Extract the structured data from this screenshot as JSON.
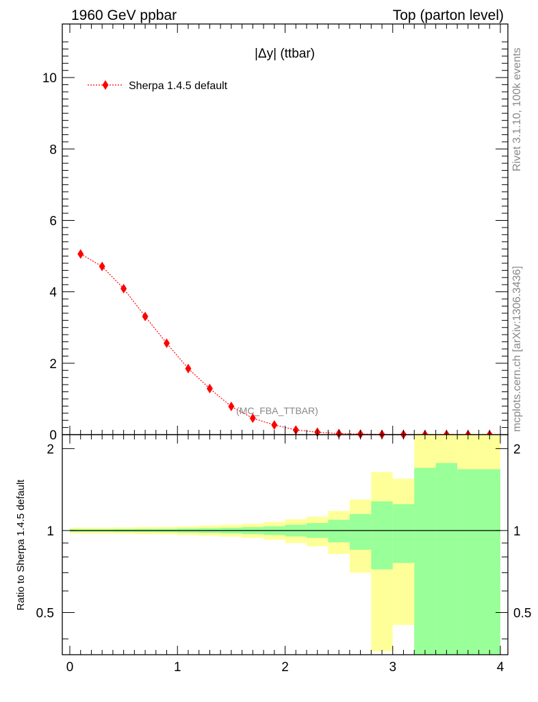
{
  "header": {
    "left": "1960 GeV ppbar",
    "right": "Top (parton level)"
  },
  "side_labels": {
    "rivet": "Rivet 3.1.10,  100k events",
    "mcplots": "mcplots.cern.ch [arXiv:1306.3436]"
  },
  "colors": {
    "series": "#ff0000",
    "band_inner": "#99ff99",
    "band_outer": "#ffff99",
    "reference_line": "#000000"
  },
  "chart_data": [
    {
      "type": "line",
      "title": "|Δy| (ttbar)",
      "watermark": "(MC_FBA_TTBAR)",
      "xlim": [
        -0.07,
        4.07
      ],
      "ylim": [
        0,
        11.5
      ],
      "yticks": [
        0,
        2,
        4,
        6,
        8,
        10
      ],
      "legend_position": "top-left",
      "series": [
        {
          "name": "Sherpa 1.4.5 default",
          "marker": "diamond",
          "line_style": "dotted",
          "x": [
            0.1,
            0.3,
            0.5,
            0.7,
            0.9,
            1.1,
            1.3,
            1.5,
            1.7,
            1.9,
            2.1,
            2.3,
            2.5,
            2.7,
            2.9,
            3.1,
            3.3,
            3.5,
            3.7,
            3.9
          ],
          "y": [
            5.06,
            4.71,
            4.09,
            3.31,
            2.56,
            1.85,
            1.29,
            0.79,
            0.46,
            0.27,
            0.13,
            0.07,
            0.03,
            0.015,
            0.008,
            0.004,
            0.003,
            0.002,
            0.001,
            0.001
          ]
        }
      ]
    },
    {
      "type": "area",
      "ylabel": "Ratio to Sherpa 1.4.5 default",
      "xlim": [
        -0.07,
        4.07
      ],
      "ylim": [
        0.35,
        2.25
      ],
      "xticks": [
        0,
        1,
        2,
        3,
        4
      ],
      "yticks": [
        0.5,
        1,
        2
      ],
      "reference_y": 1,
      "bins": [
        {
          "x0": 0.0,
          "x1": 0.2,
          "outer": [
            0.975,
            1.025
          ],
          "inner": [
            0.99,
            1.01
          ]
        },
        {
          "x0": 0.2,
          "x1": 0.4,
          "outer": [
            0.975,
            1.025
          ],
          "inner": [
            0.99,
            1.01
          ]
        },
        {
          "x0": 0.4,
          "x1": 0.6,
          "outer": [
            0.973,
            1.027
          ],
          "inner": [
            0.988,
            1.012
          ]
        },
        {
          "x0": 0.6,
          "x1": 0.8,
          "outer": [
            0.97,
            1.03
          ],
          "inner": [
            0.987,
            1.013
          ]
        },
        {
          "x0": 0.8,
          "x1": 1.0,
          "outer": [
            0.968,
            1.032
          ],
          "inner": [
            0.986,
            1.014
          ]
        },
        {
          "x0": 1.0,
          "x1": 1.2,
          "outer": [
            0.963,
            1.037
          ],
          "inner": [
            0.983,
            1.017
          ]
        },
        {
          "x0": 1.2,
          "x1": 1.4,
          "outer": [
            0.957,
            1.043
          ],
          "inner": [
            0.98,
            1.02
          ]
        },
        {
          "x0": 1.4,
          "x1": 1.6,
          "outer": [
            0.95,
            1.05
          ],
          "inner": [
            0.976,
            1.024
          ]
        },
        {
          "x0": 1.6,
          "x1": 1.8,
          "outer": [
            0.94,
            1.06
          ],
          "inner": [
            0.97,
            1.03
          ]
        },
        {
          "x0": 1.8,
          "x1": 2.0,
          "outer": [
            0.925,
            1.075
          ],
          "inner": [
            0.963,
            1.037
          ]
        },
        {
          "x0": 2.0,
          "x1": 2.2,
          "outer": [
            0.9,
            1.1
          ],
          "inner": [
            0.952,
            1.05
          ]
        },
        {
          "x0": 2.2,
          "x1": 2.4,
          "outer": [
            0.875,
            1.125
          ],
          "inner": [
            0.94,
            1.065
          ]
        },
        {
          "x0": 2.4,
          "x1": 2.6,
          "outer": [
            0.82,
            1.18
          ],
          "inner": [
            0.905,
            1.095
          ]
        },
        {
          "x0": 2.6,
          "x1": 2.8,
          "outer": [
            0.7,
            1.3
          ],
          "inner": [
            0.85,
            1.15
          ]
        },
        {
          "x0": 2.8,
          "x1": 3.0,
          "outer": [
            0.36,
            1.64
          ],
          "inner": [
            0.72,
            1.28
          ]
        },
        {
          "x0": 3.0,
          "x1": 3.2,
          "outer": [
            0.45,
            1.55
          ],
          "inner": [
            0.76,
            1.25
          ]
        },
        {
          "x0": 3.2,
          "x1": 3.4,
          "outer": [
            0.35,
            2.25
          ],
          "inner": [
            0.35,
            1.7
          ]
        },
        {
          "x0": 3.4,
          "x1": 3.6,
          "outer": [
            0.35,
            2.25
          ],
          "inner": [
            0.35,
            1.77
          ]
        },
        {
          "x0": 3.6,
          "x1": 3.8,
          "outer": [
            0.35,
            2.25
          ],
          "inner": [
            0.35,
            1.68
          ]
        },
        {
          "x0": 3.8,
          "x1": 4.0,
          "outer": [
            0.35,
            2.25
          ],
          "inner": [
            0.35,
            1.68
          ]
        }
      ]
    }
  ]
}
